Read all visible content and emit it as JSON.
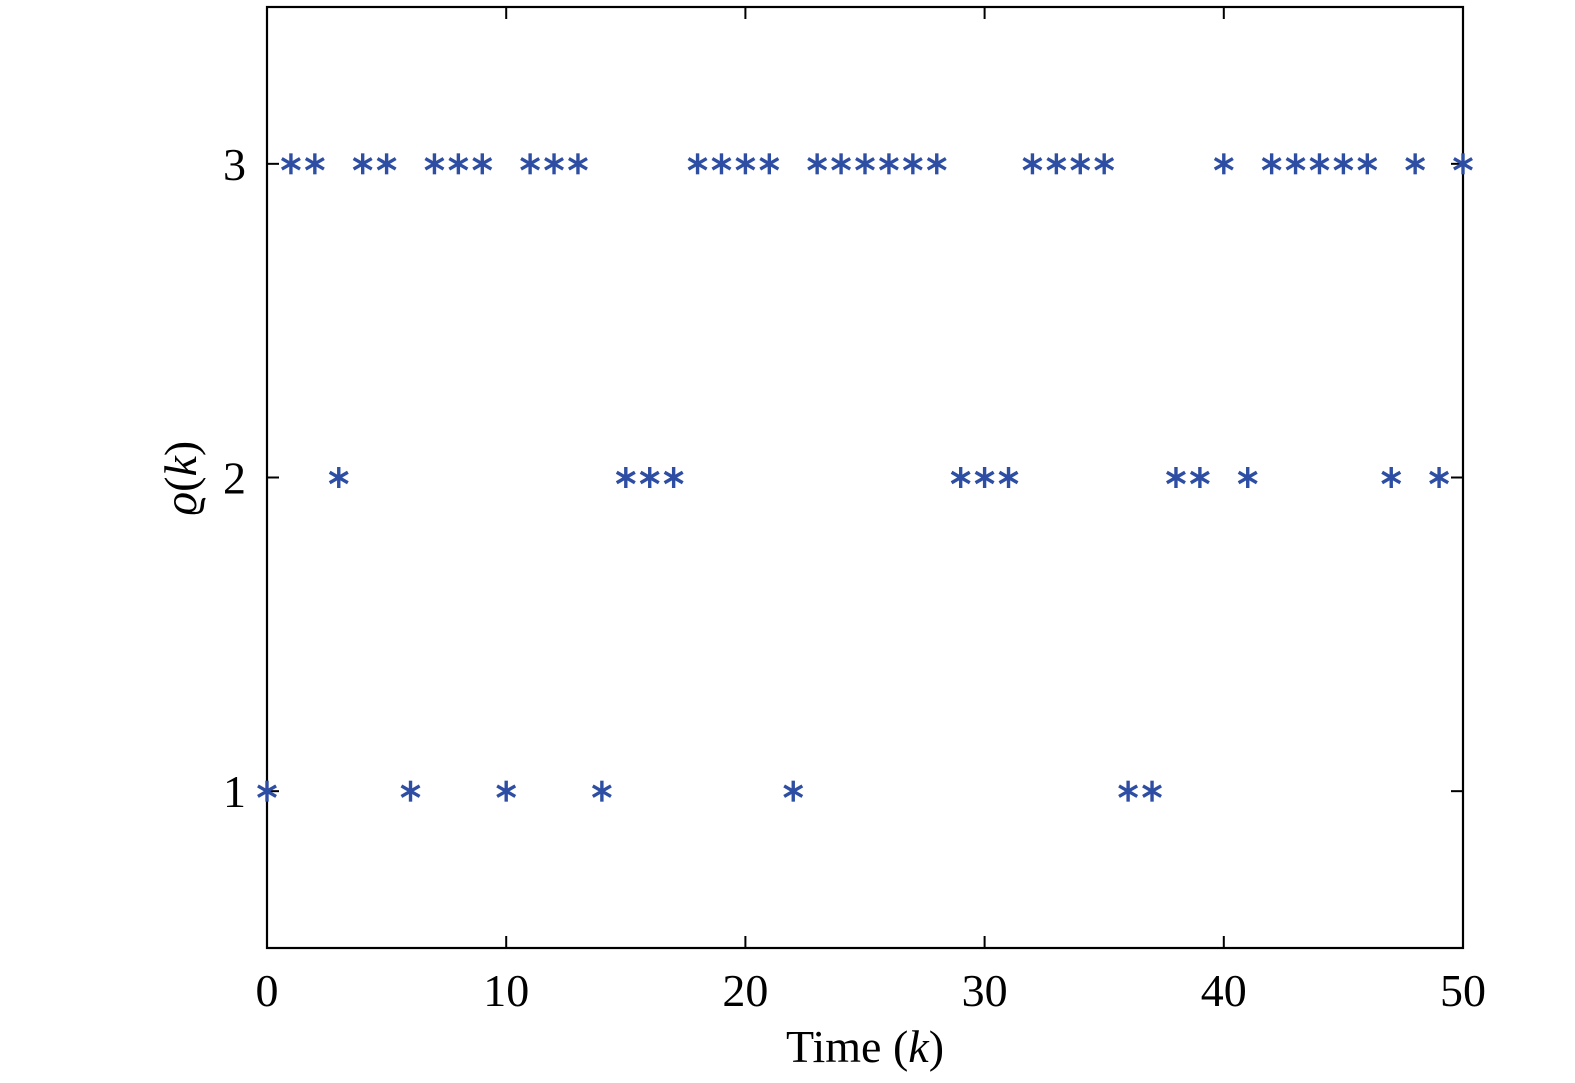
{
  "chart_data": {
    "type": "scatter",
    "xlabel_prefix": "Time (",
    "xlabel_var": "k",
    "xlabel_suffix": ")",
    "ylabel_symbol": "ϱ",
    "ylabel_open": "(",
    "ylabel_var": "k",
    "ylabel_close": ")",
    "xlim": [
      0,
      50
    ],
    "ylim": [
      0.5,
      3.5
    ],
    "xticks": [
      0,
      10,
      20,
      30,
      40,
      50
    ],
    "yticks": [
      1,
      2,
      3
    ],
    "grid": false,
    "marker": "asterisk",
    "color": "#2e4ea3",
    "x": [
      0,
      1,
      2,
      3,
      4,
      5,
      6,
      7,
      8,
      9,
      10,
      11,
      12,
      13,
      14,
      15,
      16,
      17,
      18,
      19,
      20,
      21,
      22,
      23,
      24,
      25,
      26,
      27,
      28,
      29,
      30,
      31,
      32,
      33,
      34,
      35,
      36,
      37,
      38,
      39,
      40,
      41,
      42,
      43,
      44,
      45,
      46,
      47,
      48,
      49,
      50
    ],
    "y": [
      1,
      3,
      3,
      2,
      3,
      3,
      1,
      3,
      3,
      3,
      1,
      3,
      3,
      3,
      1,
      2,
      2,
      2,
      3,
      3,
      3,
      3,
      1,
      3,
      3,
      3,
      3,
      3,
      3,
      2,
      2,
      2,
      3,
      3,
      3,
      3,
      1,
      1,
      2,
      2,
      3,
      2,
      3,
      3,
      3,
      3,
      3,
      2,
      3,
      2,
      3
    ]
  }
}
